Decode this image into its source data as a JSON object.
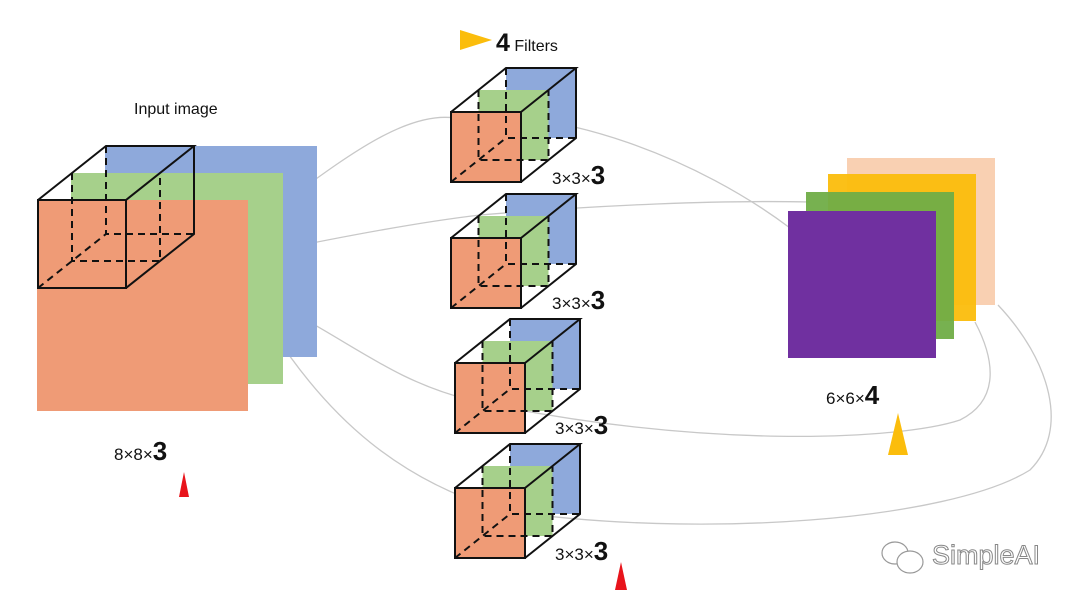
{
  "input": {
    "title": "Input image",
    "dims_prefix": "8×8×",
    "dims_channels": "3",
    "marker_color": "#e8141b"
  },
  "filters": {
    "count": "4",
    "label": "Filters",
    "marker_color": "#fbbd0c",
    "items": [
      {
        "dims_prefix": "3×3×",
        "dims_channels": "3"
      },
      {
        "dims_prefix": "3×3×",
        "dims_channels": "3"
      },
      {
        "dims_prefix": "3×3×",
        "dims_channels": "3"
      },
      {
        "dims_prefix": "3×3×",
        "dims_channels": "3"
      }
    ],
    "last_marker_color": "#e8141b"
  },
  "output": {
    "dims_prefix": "6×6×",
    "dims_channels": "4",
    "marker_color": "#fbbd0c",
    "layer_colors": [
      "#f9cdae",
      "#fbbd0c",
      "#70ad47",
      "#7030a0"
    ]
  },
  "channel_colors": {
    "red": "#ef9b76",
    "green": "#a6d08b",
    "blue": "#8ea9db"
  },
  "watermark": "SimpleAI"
}
